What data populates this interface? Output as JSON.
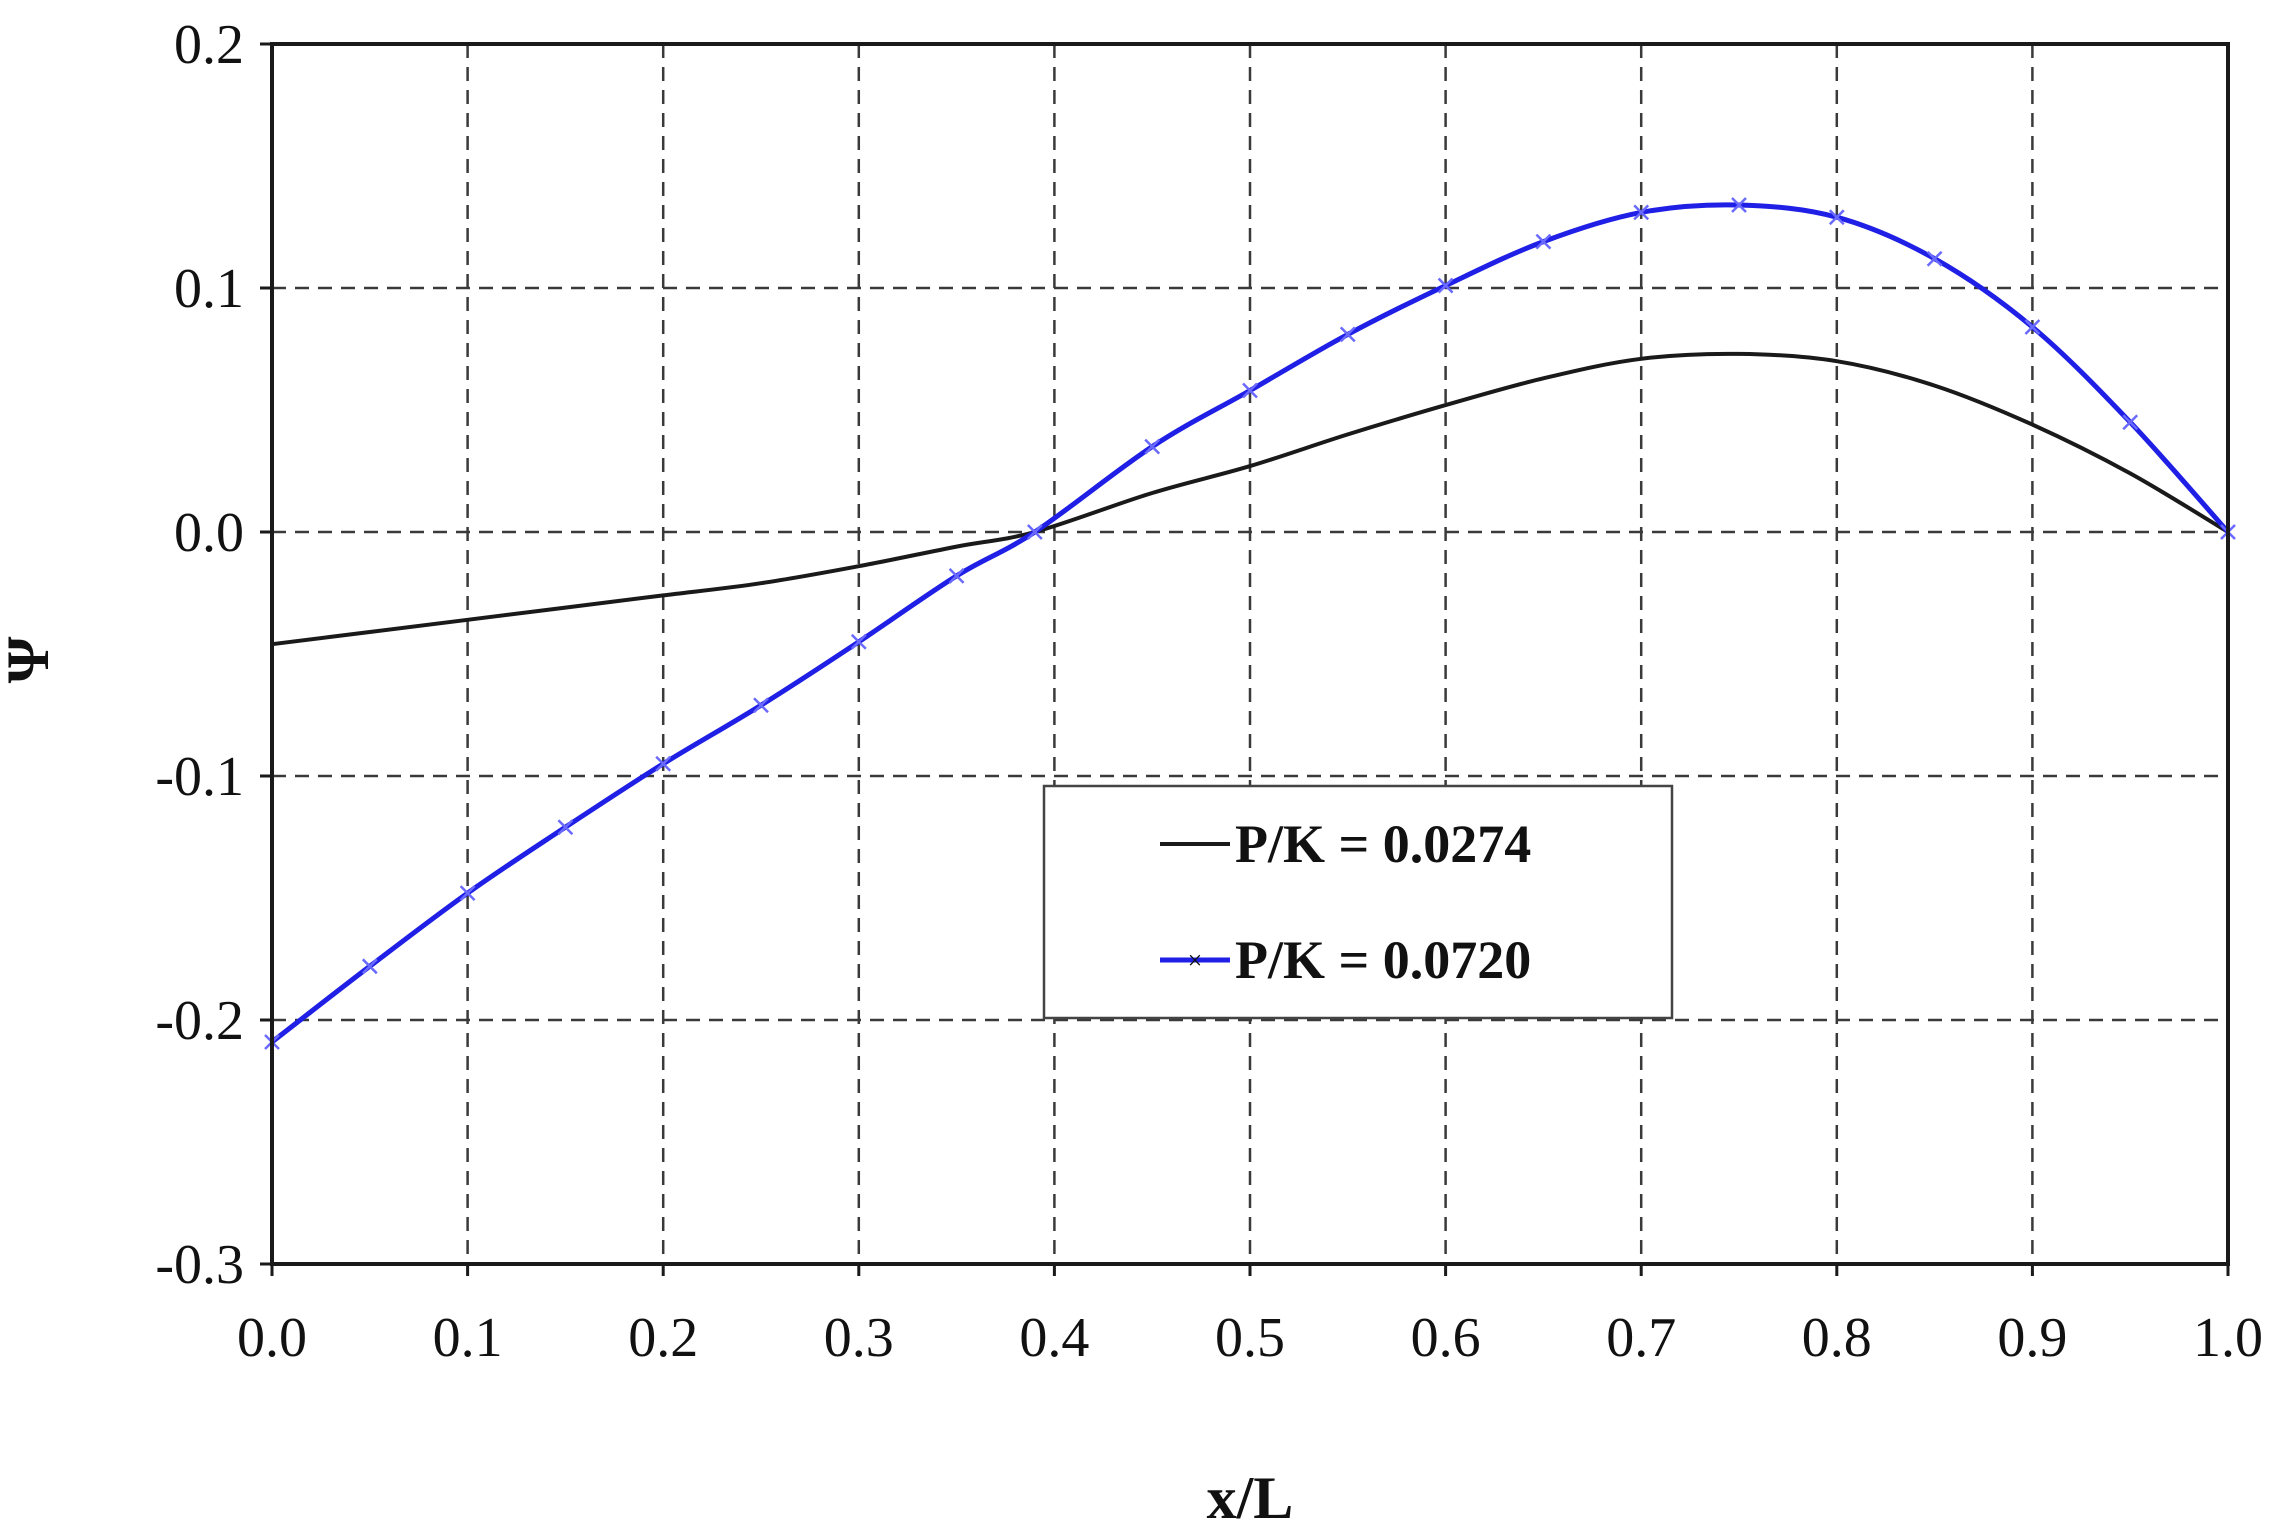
{
  "chart_data": {
    "type": "line",
    "xlabel": "x/L",
    "ylabel": "Ψ",
    "xlim": [
      0.0,
      1.0
    ],
    "ylim": [
      -0.3,
      0.2
    ],
    "x_ticks": [
      "0.0",
      "0.1",
      "0.2",
      "0.3",
      "0.4",
      "0.5",
      "0.6",
      "0.7",
      "0.8",
      "0.9",
      "1.0"
    ],
    "y_ticks": [
      "0.2",
      "0.1",
      "0.0",
      "-0.1",
      "-0.2",
      "-0.3"
    ],
    "grid": true,
    "legend_placement": "center",
    "series": [
      {
        "name": "P/K = 0.0274",
        "color": "#1a1a1a",
        "marker": "none",
        "x": [
          0.0,
          0.05,
          0.1,
          0.15,
          0.2,
          0.25,
          0.3,
          0.35,
          0.39,
          0.45,
          0.5,
          0.55,
          0.6,
          0.65,
          0.7,
          0.75,
          0.8,
          0.85,
          0.9,
          0.95,
          1.0
        ],
        "y": [
          -0.046,
          -0.041,
          -0.036,
          -0.031,
          -0.026,
          -0.021,
          -0.014,
          -0.006,
          0.0,
          0.016,
          0.027,
          0.04,
          0.052,
          0.063,
          0.071,
          0.073,
          0.07,
          0.06,
          0.044,
          0.024,
          0.0
        ]
      },
      {
        "name": "P/K = 0.0720",
        "color": "#1f1fe6",
        "marker": "x",
        "x": [
          0.0,
          0.05,
          0.1,
          0.15,
          0.2,
          0.25,
          0.3,
          0.35,
          0.39,
          0.45,
          0.5,
          0.55,
          0.6,
          0.65,
          0.7,
          0.75,
          0.8,
          0.85,
          0.9,
          0.95,
          1.0
        ],
        "y": [
          -0.209,
          -0.178,
          -0.148,
          -0.121,
          -0.095,
          -0.071,
          -0.045,
          -0.018,
          0.0,
          0.035,
          0.058,
          0.081,
          0.101,
          0.119,
          0.131,
          0.134,
          0.129,
          0.112,
          0.084,
          0.045,
          0.0
        ]
      }
    ]
  }
}
